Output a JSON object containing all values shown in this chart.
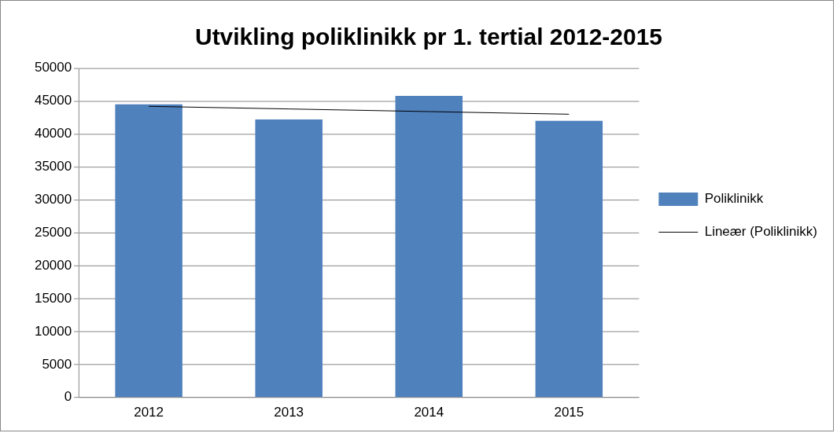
{
  "chart_data": {
    "type": "bar",
    "title": "Utvikling poliklinikk pr 1. tertial 2012-2015",
    "categories": [
      "2012",
      "2013",
      "2014",
      "2015"
    ],
    "series": [
      {
        "name": "Poliklinikk",
        "color": "#4f81bd",
        "values": [
          44500,
          42200,
          45800,
          42000
        ]
      },
      {
        "name": "Lineær (Poliklinikk)",
        "type": "line",
        "color": "#000000",
        "values": [
          44200,
          43800,
          43400,
          43000
        ]
      }
    ],
    "ylim": [
      0,
      50000
    ],
    "yticks": [
      0,
      5000,
      10000,
      15000,
      20000,
      25000,
      30000,
      35000,
      40000,
      45000,
      50000
    ],
    "grid": "y",
    "legend": "right",
    "marker": "none"
  }
}
